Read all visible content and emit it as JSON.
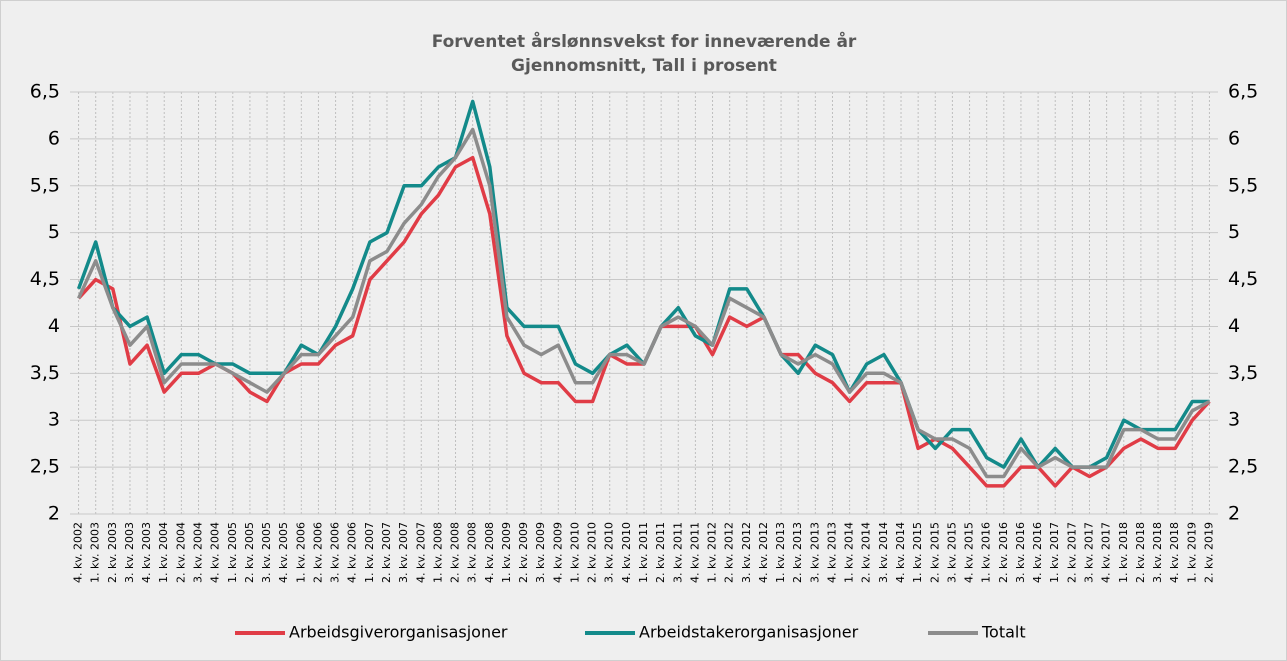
{
  "chart_data": {
    "type": "line",
    "title": "Forventet årslønnsvekst for inneværende år",
    "subtitle": "Gjennomsnitt, Tall i prosent",
    "categories": [
      "4. kv. 2002",
      "1. kv. 2003",
      "2. kv. 2003",
      "3. kv. 2003",
      "4. kv. 2003",
      "1. kv. 2004",
      "2. kv. 2004",
      "3. kv. 2004",
      "4. kv. 2004",
      "1. kv. 2005",
      "2. kv. 2005",
      "3. kv. 2005",
      "4. kv. 2005",
      "1. kv. 2006",
      "2. kv. 2006",
      "3. kv. 2006",
      "4. kv. 2006",
      "1. kv. 2007",
      "2. kv. 2007",
      "3. kv. 2007",
      "4. kv. 2007",
      "1. kv. 2008",
      "2. kv. 2008",
      "3. kv. 2008",
      "4. kv. 2008",
      "1. kv. 2009",
      "2. kv. 2009",
      "3. kv. 2009",
      "4. kv. 2009",
      "1. kv. 2010",
      "2. kv. 2010",
      "3. kv. 2010",
      "4. kv. 2010",
      "1. kv. 2011",
      "2. kv. 2011",
      "3. kv. 2011",
      "4. kv. 2011",
      "1. kv. 2012",
      "2. kv. 2012",
      "3. kv. 2012",
      "4. kv. 2012",
      "1. kv. 2013",
      "2. kv. 2013",
      "3. kv. 2013",
      "4. kv. 2013",
      "1. kv. 2014",
      "2. kv. 2014",
      "3. kv. 2014",
      "4. kv. 2014",
      "1. kv. 2015",
      "2. kv. 2015",
      "3. kv. 2015",
      "4. kv. 2015",
      "1. kv. 2016",
      "2. kv. 2016",
      "3. kv. 2016",
      "4. kv. 2016",
      "1. kv. 2017",
      "2. kv. 2017",
      "3. kv. 2017",
      "4. kv. 2017",
      "1. kv. 2018",
      "2. kv. 2018",
      "3. kv. 2018",
      "4. kv. 2018",
      "1. kv. 2019",
      "2. kv. 2019"
    ],
    "series": [
      {
        "name": "Arbeidsgiverorganisasjoner",
        "color": "#e03c46",
        "values": [
          4.3,
          4.5,
          4.4,
          3.6,
          3.8,
          3.3,
          3.5,
          3.5,
          3.6,
          3.5,
          3.3,
          3.2,
          3.5,
          3.6,
          3.6,
          3.8,
          3.9,
          4.5,
          4.7,
          4.9,
          5.2,
          5.4,
          5.7,
          5.8,
          5.2,
          3.9,
          3.5,
          3.4,
          3.4,
          3.2,
          3.2,
          3.7,
          3.6,
          3.6,
          4.0,
          4.0,
          4.0,
          3.7,
          4.1,
          4.0,
          4.1,
          3.7,
          3.7,
          3.5,
          3.4,
          3.2,
          3.4,
          3.4,
          3.4,
          2.7,
          2.8,
          2.7,
          2.5,
          2.3,
          2.3,
          2.5,
          2.5,
          2.3,
          2.5,
          2.4,
          2.5,
          2.7,
          2.8,
          2.7,
          2.7,
          3.0,
          3.2
        ]
      },
      {
        "name": "Arbeidstakerorganisasjoner",
        "color": "#138a8a",
        "values": [
          4.4,
          4.9,
          4.2,
          4.0,
          4.1,
          3.5,
          3.7,
          3.7,
          3.6,
          3.6,
          3.5,
          3.5,
          3.5,
          3.8,
          3.7,
          4.0,
          4.4,
          4.9,
          5.0,
          5.5,
          5.5,
          5.7,
          5.8,
          6.4,
          5.7,
          4.2,
          4.0,
          4.0,
          4.0,
          3.6,
          3.5,
          3.7,
          3.8,
          3.6,
          4.0,
          4.2,
          3.9,
          3.8,
          4.4,
          4.4,
          4.1,
          3.7,
          3.5,
          3.8,
          3.7,
          3.3,
          3.6,
          3.7,
          3.4,
          2.9,
          2.7,
          2.9,
          2.9,
          2.6,
          2.5,
          2.8,
          2.5,
          2.7,
          2.5,
          2.5,
          2.6,
          3.0,
          2.9,
          2.9,
          2.9,
          3.2,
          3.2
        ]
      },
      {
        "name": "Totalt",
        "color": "#8c8c8c",
        "values": [
          4.3,
          4.7,
          4.2,
          3.8,
          4.0,
          3.4,
          3.6,
          3.6,
          3.6,
          3.5,
          3.4,
          3.3,
          3.5,
          3.7,
          3.7,
          3.9,
          4.1,
          4.7,
          4.8,
          5.1,
          5.3,
          5.6,
          5.8,
          6.1,
          5.5,
          4.1,
          3.8,
          3.7,
          3.8,
          3.4,
          3.4,
          3.7,
          3.7,
          3.6,
          4.0,
          4.1,
          4.0,
          3.8,
          4.3,
          4.2,
          4.1,
          3.7,
          3.6,
          3.7,
          3.6,
          3.3,
          3.5,
          3.5,
          3.4,
          2.9,
          2.8,
          2.8,
          2.7,
          2.4,
          2.4,
          2.7,
          2.5,
          2.6,
          2.5,
          2.5,
          2.5,
          2.9,
          2.9,
          2.8,
          2.8,
          3.1,
          3.2
        ]
      }
    ],
    "ylim": [
      2,
      6.5
    ],
    "yticks": [
      2,
      {
        "value": 2.5,
        "label": "2,5"
      },
      3,
      {
        "value": 3.5,
        "label": "3,5"
      },
      4,
      {
        "value": 4.5,
        "label": "4,5"
      },
      5,
      {
        "value": 5.5,
        "label": "5,5"
      },
      6,
      {
        "value": 6.5,
        "label": "6,5"
      }
    ],
    "y2lim": [
      2,
      6.5
    ],
    "y2ticks": [
      2,
      {
        "value": 2.5,
        "label": "2,5"
      },
      3,
      {
        "value": 3.5,
        "label": "3,5"
      },
      4,
      {
        "value": 4.5,
        "label": "4,5"
      },
      5,
      {
        "value": 5.5,
        "label": "5,5"
      },
      6,
      {
        "value": 6.5,
        "label": "6,5"
      }
    ],
    "grid": true,
    "legend": "bottom"
  }
}
